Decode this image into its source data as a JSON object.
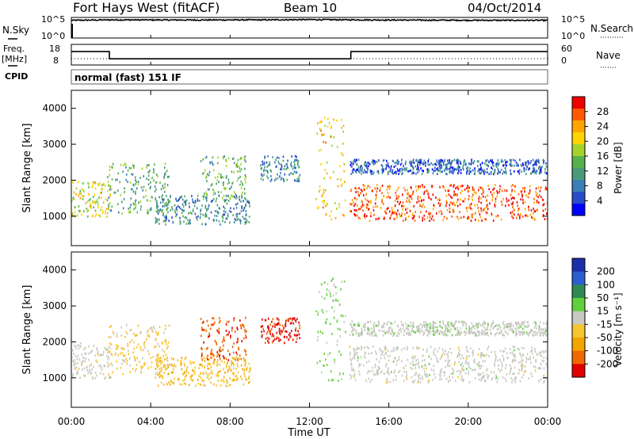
{
  "header": {
    "station": "Fort Hays West (fitACF)",
    "beam": "Beam 10",
    "date": "04/Oct/2014"
  },
  "side_labels": {
    "nsky": "N.Sky",
    "nsearch": "N.Search",
    "freq": "Freq.",
    "freq_unit": "[MHz]",
    "nave": "Nave",
    "cpid": "CPID"
  },
  "cpid_text": "normal (fast) 151 IF",
  "noise_axis": {
    "tick_labels": [
      "10^5",
      "10^0"
    ]
  },
  "freq_axis": {
    "tick_labels": [
      "18",
      "8"
    ]
  },
  "nave_axis": {
    "tick_labels": [
      "60",
      "0"
    ]
  },
  "colors": {
    "power": [
      "#0000ff",
      "#2a4cc8",
      "#3a7fb8",
      "#4a9b78",
      "#55b24a",
      "#a6d32b",
      "#ffd400",
      "#ffa500",
      "#ff5a00",
      "#ee0000"
    ],
    "velocity": [
      "#1a2fa8",
      "#2b5fd0",
      "#2e8a52",
      "#5fd13a",
      "#c9c9c2",
      "#f7c430",
      "#f4a400",
      "#f06800",
      "#e00000"
    ],
    "ground_scatter": "#c8c8c0"
  },
  "chart_data": [
    {
      "type": "line",
      "title": "N.Sky / N.Search",
      "x": [
        "00:00",
        "02:00",
        "04:00",
        "06:00",
        "08:00",
        "10:00",
        "12:00",
        "14:00",
        "16:00",
        "18:00",
        "20:00",
        "22:00",
        "24:00"
      ],
      "series": [
        {
          "name": "N.Sky",
          "values": [
            20000,
            26000,
            25000,
            24000,
            25000,
            26000,
            30000,
            27000,
            24000,
            22000,
            21000,
            20000,
            20000
          ]
        }
      ],
      "ylim": [
        1,
        100000
      ],
      "yscale": "log"
    },
    {
      "type": "line",
      "title": "Freq. / Nave",
      "x": [
        "00:00",
        "01:55",
        "01:55",
        "14:05",
        "14:05",
        "24:00"
      ],
      "series": [
        {
          "name": "Freq.",
          "values": [
            14.5,
            14.5,
            11.0,
            11.0,
            14.5,
            14.5
          ]
        }
      ],
      "ylim": [
        8,
        18
      ]
    },
    {
      "type": "heatmap",
      "ylabel": "Slant Range [km]",
      "xlabel": "Time UT",
      "x_ticks": [
        "00:00",
        "04:00",
        "08:00",
        "12:00",
        "16:00",
        "20:00",
        "00:00"
      ],
      "y_ticks": [
        1000,
        2000,
        3000,
        4000
      ],
      "ylim": [
        180,
        4500
      ],
      "colorbar": {
        "label": "Power [dB]",
        "ticks": [
          4,
          8,
          12,
          16,
          20,
          24,
          28
        ],
        "range": [
          0,
          30
        ]
      },
      "regions": [
        {
          "hours": [
            0.0,
            2.0
          ],
          "range_km": [
            1000,
            2000
          ],
          "level_db": 18
        },
        {
          "hours": [
            1.8,
            5.0
          ],
          "range_km": [
            1100,
            2500
          ],
          "level_db": 12
        },
        {
          "hours": [
            4.2,
            9.0
          ],
          "range_km": [
            800,
            1600
          ],
          "level_db": 9
        },
        {
          "hours": [
            6.5,
            8.8
          ],
          "range_km": [
            1500,
            2700
          ],
          "level_db": 13
        },
        {
          "hours": [
            9.5,
            11.5
          ],
          "range_km": [
            2000,
            2700
          ],
          "level_db": 8
        },
        {
          "hours": [
            12.3,
            13.8
          ],
          "range_km": [
            900,
            3800
          ],
          "level_db": 20
        },
        {
          "hours": [
            14.0,
            24.0
          ],
          "range_km": [
            900,
            1900
          ],
          "level_db": 26
        },
        {
          "hours": [
            14.0,
            24.0
          ],
          "range_km": [
            2200,
            2600
          ],
          "level_db": 6
        }
      ]
    },
    {
      "type": "heatmap",
      "ylabel": "Slant Range [km]",
      "xlabel": "Time UT",
      "x_ticks": [
        "00:00",
        "04:00",
        "08:00",
        "12:00",
        "16:00",
        "20:00",
        "00:00"
      ],
      "y_ticks": [
        1000,
        2000,
        3000,
        4000
      ],
      "ylim": [
        180,
        4500
      ],
      "colorbar": {
        "label": "Velocity [m s⁻¹]",
        "ticks": [
          200,
          100,
          50,
          15,
          -15,
          -50,
          -100,
          -200
        ],
        "range": [
          -250,
          250
        ]
      },
      "regions": [
        {
          "hours": [
            0.0,
            2.0
          ],
          "range_km": [
            1000,
            2000
          ],
          "velocity": 0
        },
        {
          "hours": [
            1.8,
            5.0
          ],
          "range_km": [
            1100,
            2500
          ],
          "velocity": -40
        },
        {
          "hours": [
            4.2,
            9.0
          ],
          "range_km": [
            800,
            1600
          ],
          "velocity": -70
        },
        {
          "hours": [
            6.5,
            8.8
          ],
          "range_km": [
            1500,
            2700
          ],
          "velocity": -180
        },
        {
          "hours": [
            9.5,
            11.5
          ],
          "range_km": [
            2000,
            2700
          ],
          "velocity": -210
        },
        {
          "hours": [
            12.3,
            13.8
          ],
          "range_km": [
            900,
            3800
          ],
          "velocity": 40
        },
        {
          "hours": [
            14.0,
            24.0
          ],
          "range_km": [
            900,
            1900
          ],
          "velocity": 0
        },
        {
          "hours": [
            14.0,
            24.0
          ],
          "range_km": [
            2200,
            2600
          ],
          "velocity": 5
        }
      ]
    }
  ]
}
